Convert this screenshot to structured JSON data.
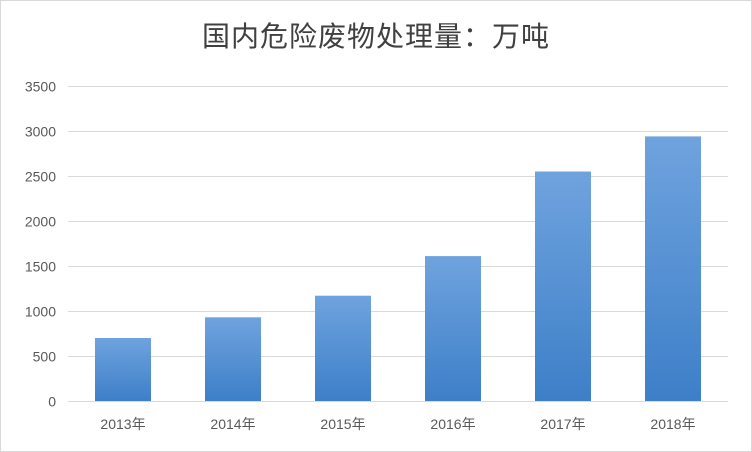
{
  "chart_data": {
    "type": "bar",
    "title": "国内危险废物处理量：万吨",
    "categories": [
      "2013年",
      "2014年",
      "2015年",
      "2016年",
      "2017年",
      "2018年"
    ],
    "series": [
      {
        "values": [
          700,
          930,
          1170,
          1610,
          2550,
          2940
        ]
      }
    ],
    "ylim": [
      0,
      3500
    ],
    "yticks": [
      0,
      500,
      1000,
      1500,
      2000,
      2500,
      3000,
      3500
    ],
    "grid": true,
    "colors": {
      "bar_top": "#6fa3de",
      "bar_bottom": "#3d7fc8",
      "grid": "#d9d9d9",
      "text": "#595959"
    }
  }
}
